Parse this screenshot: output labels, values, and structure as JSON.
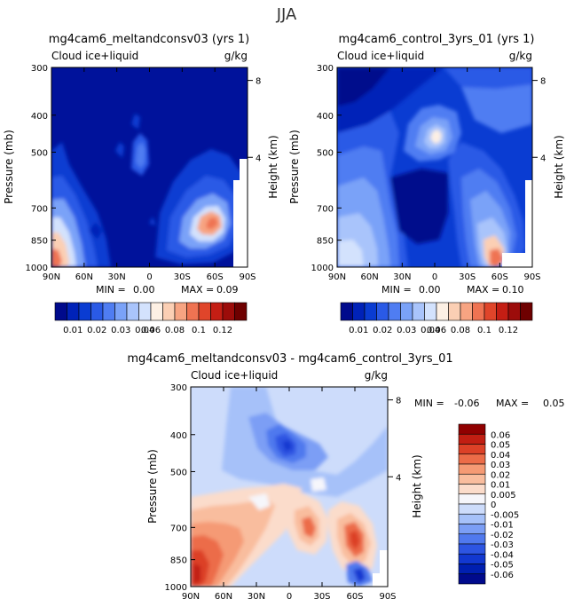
{
  "figure_title": "JJA",
  "colors": {
    "abs_scale": [
      "#000a8c",
      "#0022b8",
      "#0a3cd2",
      "#2a5ae6",
      "#4f7df2",
      "#7aa2f8",
      "#a9c4fb",
      "#d3e2fd",
      "#fdf0e4",
      "#fbcfb4",
      "#f7a482",
      "#ef7352",
      "#e0452a",
      "#c41e14",
      "#9c0c0a",
      "#6e0000"
    ],
    "diff_scale": [
      "#000a8c",
      "#001fb0",
      "#1238d0",
      "#2d55e2",
      "#5079ee",
      "#7b9ef5",
      "#a6c1f9",
      "#cddcfb",
      "#f6f6fb",
      "#fbdccb",
      "#f9bd9e",
      "#f59a74",
      "#ec6c48",
      "#dc4127",
      "#c11e12",
      "#900000"
    ]
  },
  "chart_data": [
    {
      "type": "heatmap",
      "title": "mg4cam6_meltandconsv03 (yrs 1)",
      "left_label": "Cloud ice+liquid",
      "right_label": "g/kg",
      "ylabel": "Pressure (mb)",
      "y2label": "Height (km)",
      "xticks": [
        "90N",
        "60N",
        "30N",
        "0",
        "30S",
        "60S",
        "90S"
      ],
      "yticks": [
        "300",
        "400",
        "500",
        "700",
        "850",
        "1000"
      ],
      "y2ticks": [
        "8",
        "4"
      ],
      "ylim": [
        1000,
        300
      ],
      "stats": {
        "min_label": "MIN =",
        "min": "0.00",
        "max_label": "MAX =",
        "max": "0.09"
      },
      "colorbar_labels": [
        "0.01",
        "0.02",
        "0.03",
        "0.04",
        "0.06",
        "0.08",
        "0.1",
        "0.12"
      ],
      "features": [
        {
          "lat": 78,
          "p": 960,
          "value": 0.08
        },
        {
          "lat": 72,
          "p": 880,
          "value": 0.05
        },
        {
          "lat": 65,
          "p": 800,
          "value": 0.03
        },
        {
          "lat": -55,
          "p": 845,
          "value": 0.09
        },
        {
          "lat": -50,
          "p": 790,
          "value": 0.04
        },
        {
          "lat": -12,
          "p": 560,
          "value": 0.015
        }
      ]
    },
    {
      "type": "heatmap",
      "title": "mg4cam6_control_3yrs_01 (yrs 1)",
      "left_label": "Cloud ice+liquid",
      "right_label": "g/kg",
      "ylabel": "Pressure (mb)",
      "y2label": "Height (km)",
      "xticks": [
        "90N",
        "60N",
        "30N",
        "0",
        "30S",
        "60S",
        "90S"
      ],
      "yticks": [
        "300",
        "400",
        "500",
        "700",
        "850",
        "1000"
      ],
      "y2ticks": [
        "8",
        "4"
      ],
      "ylim": [
        1000,
        300
      ],
      "stats": {
        "min_label": "MIN =",
        "min": "0.00",
        "max_label": "MAX =",
        "max": "0.10"
      },
      "colorbar_labels": [
        "0.01",
        "0.02",
        "0.03",
        "0.04",
        "0.06",
        "0.08",
        "0.1",
        "0.12"
      ],
      "features": [
        {
          "lat": 80,
          "p": 950,
          "value": 0.05
        },
        {
          "lat": 65,
          "p": 650,
          "value": 0.03
        },
        {
          "lat": 5,
          "p": 500,
          "value": 0.05
        },
        {
          "lat": -25,
          "p": 620,
          "value": 0.03
        },
        {
          "lat": -58,
          "p": 910,
          "value": 0.1
        },
        {
          "lat": -45,
          "p": 760,
          "value": 0.04
        }
      ]
    },
    {
      "type": "heatmap",
      "title": "mg4cam6_meltandconsv03 - mg4cam6_control_3yrs_01",
      "left_label": "Cloud ice+liquid",
      "right_label": "g/kg",
      "ylabel": "Pressure (mb)",
      "y2label": "Height (km)",
      "xticks": [
        "90N",
        "60N",
        "30N",
        "0",
        "30S",
        "60S",
        "90S"
      ],
      "yticks": [
        "300",
        "400",
        "500",
        "700",
        "850",
        "1000"
      ],
      "y2ticks": [
        "8",
        "4"
      ],
      "ylim": [
        1000,
        300
      ],
      "stats": {
        "min_label": "MIN =",
        "min": "-0.06",
        "max_label": "MAX =",
        "max": "0.05"
      },
      "colorbar_labels": [
        "0.06",
        "0.05",
        "0.04",
        "0.03",
        "0.02",
        "0.01",
        "0.005",
        "0",
        "-0.005",
        "-0.01",
        "-0.02",
        "-0.03",
        "-0.04",
        "-0.05",
        "-0.06"
      ],
      "features": [
        {
          "lat": 80,
          "p": 900,
          "value": 0.05
        },
        {
          "lat": -50,
          "p": 850,
          "value": 0.04
        },
        {
          "lat": -15,
          "p": 830,
          "value": 0.03
        },
        {
          "lat": 10,
          "p": 490,
          "value": -0.05
        },
        {
          "lat": -55,
          "p": 960,
          "value": -0.06
        },
        {
          "lat": 40,
          "p": 600,
          "value": -0.01
        }
      ]
    }
  ]
}
